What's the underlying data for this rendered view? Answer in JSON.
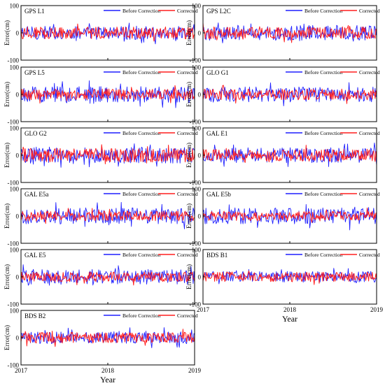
{
  "figure": {
    "x_label": "Year",
    "y_label": "Error(cm)",
    "legend": [
      "Before Correction",
      "Corrected"
    ],
    "x_ticks": [
      "2017",
      "2018",
      "2019"
    ],
    "y_ticks": [
      "100",
      "0",
      "-100"
    ]
  },
  "colors": {
    "before": "#1f1fff",
    "corrected": "#ff1f1f"
  },
  "chart_data": [
    {
      "type": "line",
      "title": "GPS L1",
      "xlim": [
        "2017-01-01",
        "2019-01-01"
      ],
      "ylim": [
        -100,
        100
      ],
      "legend_position": "top-right",
      "series": [
        {
          "name": "Before Correction",
          "amplitude": 25
        },
        {
          "name": "Corrected",
          "amplitude": 22
        }
      ]
    },
    {
      "type": "line",
      "title": "GPS L2C",
      "xlim": [
        "2017-01-01",
        "2019-01-01"
      ],
      "ylim": [
        -100,
        100
      ],
      "legend_position": "top-right",
      "series": [
        {
          "name": "Before Correction",
          "amplitude": 28
        },
        {
          "name": "Corrected",
          "amplitude": 22
        }
      ]
    },
    {
      "type": "line",
      "title": "GPS L5",
      "xlim": [
        "2017-01-01",
        "2019-01-01"
      ],
      "ylim": [
        -100,
        100
      ],
      "legend_position": "top-right",
      "series": [
        {
          "name": "Before Correction",
          "amplitude": 30
        },
        {
          "name": "Corrected",
          "amplitude": 20
        }
      ]
    },
    {
      "type": "line",
      "title": "GLO G1",
      "xlim": [
        "2017-01-01",
        "2019-01-01"
      ],
      "ylim": [
        -100,
        100
      ],
      "legend_position": "top-right",
      "series": [
        {
          "name": "Before Correction",
          "amplitude": 28
        },
        {
          "name": "Corrected",
          "amplitude": 20
        }
      ]
    },
    {
      "type": "line",
      "title": "GLO G2",
      "xlim": [
        "2017-01-01",
        "2019-01-01"
      ],
      "ylim": [
        -100,
        100
      ],
      "legend_position": "top-right",
      "series": [
        {
          "name": "Before Correction",
          "amplitude": 30
        },
        {
          "name": "Corrected",
          "amplitude": 25
        }
      ]
    },
    {
      "type": "line",
      "title": "GAL E1",
      "xlim": [
        "2017-01-01",
        "2019-01-01"
      ],
      "ylim": [
        -100,
        100
      ],
      "legend_position": "top-right",
      "series": [
        {
          "name": "Before Correction",
          "amplitude": 28
        },
        {
          "name": "Corrected",
          "amplitude": 22
        }
      ]
    },
    {
      "type": "line",
      "title": "GAL E5a",
      "xlim": [
        "2017-01-01",
        "2019-01-01"
      ],
      "ylim": [
        -100,
        100
      ],
      "legend_position": "top-right",
      "series": [
        {
          "name": "Before Correction",
          "amplitude": 30
        },
        {
          "name": "Corrected",
          "amplitude": 18
        }
      ]
    },
    {
      "type": "line",
      "title": "GAL E5b",
      "xlim": [
        "2017-01-01",
        "2019-01-01"
      ],
      "ylim": [
        -100,
        100
      ],
      "legend_position": "top-right",
      "series": [
        {
          "name": "Before Correction",
          "amplitude": 30
        },
        {
          "name": "Corrected",
          "amplitude": 18
        }
      ]
    },
    {
      "type": "line",
      "title": "GAL E5",
      "xlim": [
        "2017-01-01",
        "2019-01-01"
      ],
      "ylim": [
        -100,
        100
      ],
      "legend_position": "top-right",
      "series": [
        {
          "name": "Before Correction",
          "amplitude": 28
        },
        {
          "name": "Corrected",
          "amplitude": 18
        }
      ]
    },
    {
      "type": "line",
      "title": "BDS B1",
      "xlim": [
        "2017-01-01",
        "2019-01-01"
      ],
      "ylim": [
        -100,
        100
      ],
      "legend_position": "top-right",
      "series": [
        {
          "name": "Before Correction",
          "amplitude": 20
        },
        {
          "name": "Corrected",
          "amplitude": 18
        }
      ]
    },
    {
      "type": "line",
      "title": "BDS B2",
      "xlim": [
        "2017-01-01",
        "2019-01-01"
      ],
      "ylim": [
        -100,
        100
      ],
      "legend_position": "top-right",
      "series": [
        {
          "name": "Before Correction",
          "amplitude": 22
        },
        {
          "name": "Corrected",
          "amplitude": 20
        }
      ]
    }
  ]
}
